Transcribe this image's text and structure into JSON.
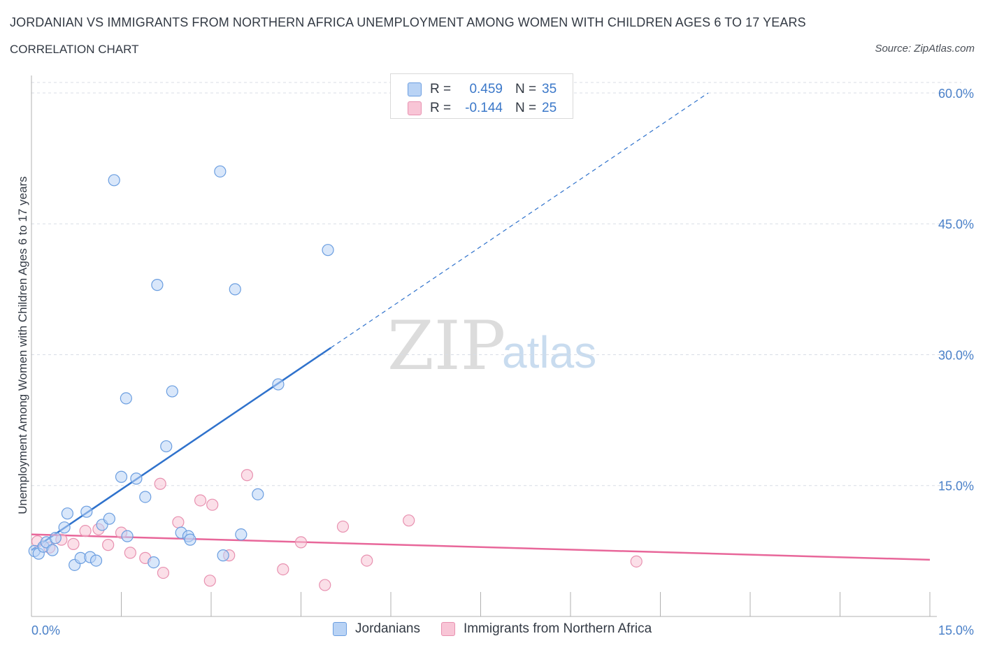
{
  "header": {
    "title": "JORDANIAN VS IMMIGRANTS FROM NORTHERN AFRICA UNEMPLOYMENT AMONG WOMEN WITH CHILDREN AGES 6 TO 17 YEARS",
    "subtitle": "CORRELATION CHART",
    "source": "Source: ZipAtlas.com"
  },
  "watermark": {
    "zip": "ZIP",
    "atlas": "atlas"
  },
  "legend_top": {
    "rows": [
      {
        "r_label": "R =",
        "r_value": "0.459",
        "n_label": "N =",
        "n_value": "35"
      },
      {
        "r_label": "R =",
        "r_value": "-0.144",
        "n_label": "N =",
        "n_value": "25"
      }
    ]
  },
  "legend_bottom": {
    "series_1": "Jordanians",
    "series_2": "Immigrants from Northern Africa"
  },
  "colors": {
    "jordanian_fill": "#b9d3f5",
    "jordanian_stroke": "#6b9ee0",
    "jordanian_line": "#2f72cc",
    "immigrant_fill": "#f8c5d6",
    "immigrant_stroke": "#e891b0",
    "immigrant_line": "#e8679a",
    "grid": "#d8dde6",
    "axis": "#b0b0b0",
    "tick_text": "#4a80c8"
  },
  "chart_data": {
    "type": "scatter",
    "title": "JORDANIAN VS IMMIGRANTS FROM NORTHERN AFRICA UNEMPLOYMENT AMONG WOMEN WITH CHILDREN AGES 6 TO 17 YEARS",
    "xlabel": "",
    "ylabel": "Unemployment Among Women with Children Ages 6 to 17 years",
    "xlim": [
      0,
      15
    ],
    "ylim": [
      0,
      60
    ],
    "x_tick_labels": [
      {
        "value": 0,
        "label": "0.0%"
      },
      {
        "value": 15,
        "label": "15.0%"
      }
    ],
    "y_tick_labels": [
      {
        "value": 15,
        "label": "15.0%"
      },
      {
        "value": 30,
        "label": "30.0%"
      },
      {
        "value": 45,
        "label": "45.0%"
      },
      {
        "value": 60,
        "label": "60.0%"
      }
    ],
    "series": [
      {
        "name": "Jordanians",
        "r": 0.459,
        "n": 35,
        "points": [
          {
            "x": 0.05,
            "y": 7.5
          },
          {
            "x": 0.12,
            "y": 7.2
          },
          {
            "x": 0.2,
            "y": 8.0
          },
          {
            "x": 0.25,
            "y": 8.5
          },
          {
            "x": 0.35,
            "y": 7.6
          },
          {
            "x": 0.4,
            "y": 9.0
          },
          {
            "x": 0.55,
            "y": 10.2
          },
          {
            "x": 0.6,
            "y": 11.8
          },
          {
            "x": 0.72,
            "y": 5.9
          },
          {
            "x": 0.82,
            "y": 6.7
          },
          {
            "x": 0.92,
            "y": 12.0
          },
          {
            "x": 0.98,
            "y": 6.8
          },
          {
            "x": 1.08,
            "y": 6.4
          },
          {
            "x": 1.18,
            "y": 10.5
          },
          {
            "x": 1.3,
            "y": 11.2
          },
          {
            "x": 1.38,
            "y": 50.0
          },
          {
            "x": 1.5,
            "y": 16.0
          },
          {
            "x": 1.6,
            "y": 9.2
          },
          {
            "x": 1.58,
            "y": 25.0
          },
          {
            "x": 1.75,
            "y": 15.8
          },
          {
            "x": 1.9,
            "y": 13.7
          },
          {
            "x": 2.04,
            "y": 6.2
          },
          {
            "x": 2.1,
            "y": 38.0
          },
          {
            "x": 2.25,
            "y": 19.5
          },
          {
            "x": 2.35,
            "y": 25.8
          },
          {
            "x": 2.5,
            "y": 9.6
          },
          {
            "x": 2.62,
            "y": 9.2
          },
          {
            "x": 2.65,
            "y": 8.8
          },
          {
            "x": 3.15,
            "y": 51.0
          },
          {
            "x": 3.2,
            "y": 7.0
          },
          {
            "x": 3.4,
            "y": 37.5
          },
          {
            "x": 3.5,
            "y": 9.4
          },
          {
            "x": 3.78,
            "y": 14.0
          },
          {
            "x": 4.12,
            "y": 26.6
          },
          {
            "x": 4.95,
            "y": 42.0
          }
        ],
        "trend": {
          "x_start": 0.0,
          "y_start": 7.6,
          "x_solid_end": 5.0,
          "y_solid_end": 30.8,
          "x_dash_end": 11.3,
          "y_dash_end": 60.0
        }
      },
      {
        "name": "Immigrants from Northern Africa",
        "r": -0.144,
        "n": 25,
        "points": [
          {
            "x": 0.1,
            "y": 8.6
          },
          {
            "x": 0.3,
            "y": 7.9
          },
          {
            "x": 0.5,
            "y": 8.8
          },
          {
            "x": 0.7,
            "y": 8.3
          },
          {
            "x": 0.9,
            "y": 9.8
          },
          {
            "x": 1.12,
            "y": 10.0
          },
          {
            "x": 1.28,
            "y": 8.2
          },
          {
            "x": 1.5,
            "y": 9.6
          },
          {
            "x": 1.65,
            "y": 7.3
          },
          {
            "x": 1.9,
            "y": 6.7
          },
          {
            "x": 2.15,
            "y": 15.2
          },
          {
            "x": 2.2,
            "y": 5.0
          },
          {
            "x": 2.45,
            "y": 10.8
          },
          {
            "x": 2.82,
            "y": 13.3
          },
          {
            "x": 2.98,
            "y": 4.1
          },
          {
            "x": 3.02,
            "y": 12.8
          },
          {
            "x": 3.3,
            "y": 7.0
          },
          {
            "x": 3.6,
            "y": 16.2
          },
          {
            "x": 4.2,
            "y": 5.4
          },
          {
            "x": 4.5,
            "y": 8.5
          },
          {
            "x": 4.9,
            "y": 3.6
          },
          {
            "x": 5.2,
            "y": 10.3
          },
          {
            "x": 5.6,
            "y": 6.4
          },
          {
            "x": 6.3,
            "y": 11.0
          },
          {
            "x": 10.1,
            "y": 6.3
          }
        ],
        "trend": {
          "x_start": 0.0,
          "y_start": 9.4,
          "x_end": 15.0,
          "y_end": 6.5
        }
      }
    ]
  }
}
